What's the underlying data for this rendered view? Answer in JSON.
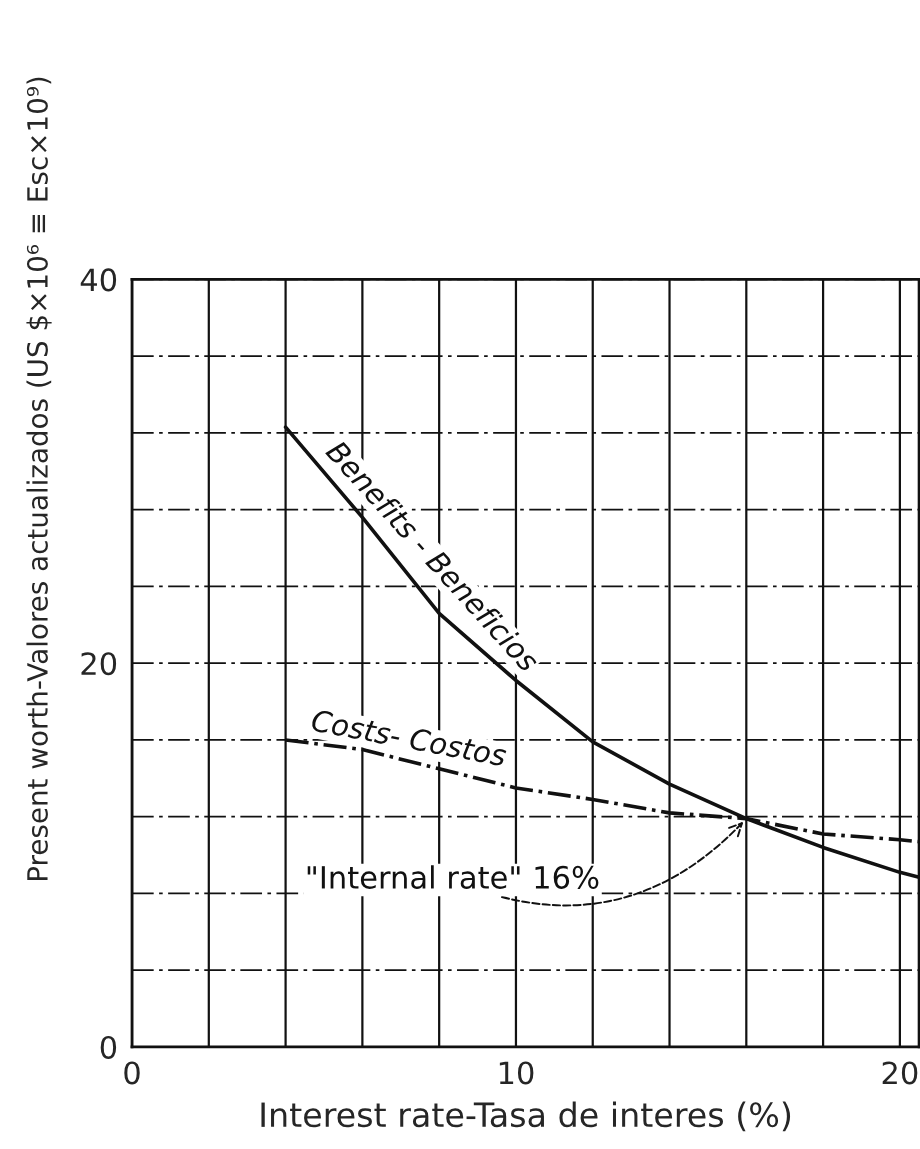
{
  "chart_data": {
    "type": "line",
    "xlabel": "Interest rate-Tasa de interes (%)",
    "ylabel": "Present worth-Valores actualizados (US $×10⁶ ≡ Esc×10⁹)",
    "x": [
      4,
      6,
      8,
      10,
      12,
      14,
      16,
      18,
      20,
      20.5
    ],
    "series": [
      {
        "name": "Benefits - Beneficios",
        "color": "#111111",
        "line_style": "solid",
        "values": [
          32.3,
          27.6,
          22.6,
          19.1,
          15.9,
          13.7,
          11.9,
          10.4,
          9.1,
          8.85
        ]
      },
      {
        "name": "Costs- Costos",
        "color": "#111111",
        "line_style": "dashdot",
        "values": [
          16.0,
          15.5,
          14.5,
          13.5,
          12.9,
          12.2,
          11.9,
          11.1,
          10.8,
          10.7
        ]
      }
    ],
    "xlim": [
      0,
      20.5
    ],
    "ylim": [
      0,
      40
    ],
    "xticks": [
      0,
      {
        "value": 2,
        "label": null
      },
      {
        "value": 4,
        "label": null
      },
      {
        "value": 6,
        "label": null
      },
      {
        "value": 8,
        "label": null
      },
      10,
      {
        "value": 12,
        "label": null
      },
      {
        "value": 14,
        "label": null
      },
      {
        "value": 16,
        "label": null
      },
      {
        "value": 18,
        "label": null
      },
      20
    ],
    "yticks": [
      0,
      {
        "value": 4,
        "label": null
      },
      {
        "value": 8,
        "label": null
      },
      {
        "value": 12,
        "label": null
      },
      {
        "value": 16,
        "label": null
      },
      20,
      {
        "value": 24,
        "label": null
      },
      {
        "value": 28,
        "label": null
      },
      {
        "value": 32,
        "label": null
      },
      {
        "value": 36,
        "label": null
      },
      40
    ],
    "grid": true,
    "legend": false,
    "annotations": [
      {
        "text": "\"Internal rate\" 16%",
        "x": 16,
        "y": 11.9
      }
    ]
  }
}
